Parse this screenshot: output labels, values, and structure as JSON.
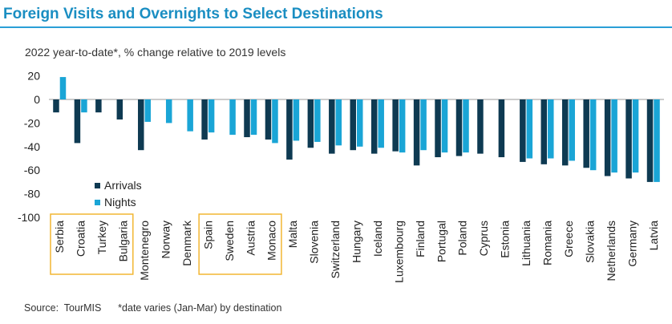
{
  "header": {
    "title": "Foreign Visits and Overnights to Select Destinations",
    "subtitle": "2022 year-to-date*, % change relative to 2019 levels"
  },
  "footer": {
    "source": "Source:  TourMIS      *date varies (Jan-Mar) by destination"
  },
  "colors": {
    "title": "#1a8ec2",
    "arrivals": "#0e3a52",
    "nights": "#1aa5d6",
    "highlight_box": "#f2b632"
  },
  "chart_data": {
    "type": "bar",
    "categories": [
      "Serbia",
      "Croatia",
      "Turkey",
      "Bulgaria",
      "Montenegro",
      "Norway",
      "Denmark",
      "Spain",
      "Sweden",
      "Austria",
      "Monaco",
      "Malta",
      "Slovenia",
      "Switzerland",
      "Hungary",
      "Iceland",
      "Luxembourg",
      "Finland",
      "Portugal",
      "Poland",
      "Cyprus",
      "Estonia",
      "Lithuania",
      "Romania",
      "Greece",
      "Slovakia",
      "Netherlands",
      "Germany",
      "Latvia"
    ],
    "series": [
      {
        "name": "Arrivals",
        "values": [
          -11,
          -37,
          -11,
          -17,
          -43,
          null,
          null,
          -34,
          null,
          -32,
          -34,
          -51,
          -41,
          -46,
          -43,
          -46,
          -44,
          -56,
          -49,
          -48,
          -46,
          -49,
          -53,
          -55,
          -56,
          -58,
          -65,
          -67,
          -70
        ]
      },
      {
        "name": "Nights",
        "values": [
          19,
          -11,
          null,
          null,
          -19,
          -20,
          -27,
          -28,
          -30,
          -30,
          -37,
          -35,
          -36,
          -39,
          -40,
          -41,
          -45,
          -43,
          -45,
          -45,
          null,
          null,
          -50,
          -50,
          -52,
          -60,
          -62,
          -62,
          -70
        ]
      }
    ],
    "ylim": [
      -100,
      20
    ],
    "yticks": [
      -100,
      -80,
      -60,
      -40,
      -20,
      0,
      20
    ],
    "legend": "bottom-left",
    "grid": false,
    "highlight_groups": [
      [
        "Serbia",
        "Croatia",
        "Turkey",
        "Bulgaria"
      ],
      [
        "Spain",
        "Sweden",
        "Austria",
        "Monaco"
      ]
    ]
  }
}
